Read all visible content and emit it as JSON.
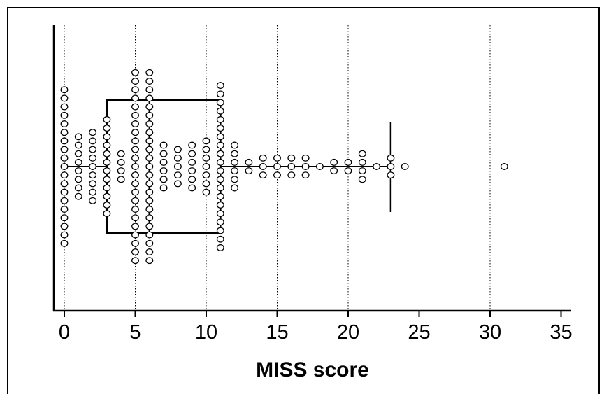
{
  "chart_data": {
    "type": "scatter",
    "subtype": "beeswarm dot plot with box plot",
    "title": "",
    "xlabel": "MISS score",
    "ylabel": "",
    "xlim": [
      -0.7,
      35.5
    ],
    "x_ticks": [
      0,
      5,
      10,
      15,
      20,
      25,
      30,
      35
    ],
    "x_tick_labels": [
      "0",
      "5",
      "10",
      "15",
      "20",
      "25",
      "30",
      "35"
    ],
    "grid": "vertical dotted lines at each x tick",
    "legend": "none",
    "box_plot": {
      "q1": 3,
      "median": 6,
      "q3": 11,
      "whisker_low": 0,
      "whisker_high": 23
    },
    "value_counts": [
      {
        "x": 0,
        "n": 19
      },
      {
        "x": 1,
        "n": 8
      },
      {
        "x": 2,
        "n": 9
      },
      {
        "x": 3,
        "n": 12
      },
      {
        "x": 4,
        "n": 4
      },
      {
        "x": 5,
        "n": 23
      },
      {
        "x": 6,
        "n": 23
      },
      {
        "x": 7,
        "n": 6
      },
      {
        "x": 8,
        "n": 5
      },
      {
        "x": 9,
        "n": 6
      },
      {
        "x": 10,
        "n": 7
      },
      {
        "x": 11,
        "n": 20
      },
      {
        "x": 12,
        "n": 6
      },
      {
        "x": 13,
        "n": 2
      },
      {
        "x": 14,
        "n": 3
      },
      {
        "x": 15,
        "n": 3
      },
      {
        "x": 16,
        "n": 3
      },
      {
        "x": 17,
        "n": 3
      },
      {
        "x": 18,
        "n": 1
      },
      {
        "x": 19,
        "n": 2
      },
      {
        "x": 20,
        "n": 2
      },
      {
        "x": 21,
        "n": 4
      },
      {
        "x": 22,
        "n": 1
      },
      {
        "x": 23,
        "n": 3
      },
      {
        "x": 24,
        "n": 1
      },
      {
        "x": 31,
        "n": 1
      }
    ],
    "colors": {
      "marker_fill": "#ffffff",
      "marker_stroke": "#000000",
      "gridline": "#000000",
      "background": "#ffffff"
    }
  }
}
